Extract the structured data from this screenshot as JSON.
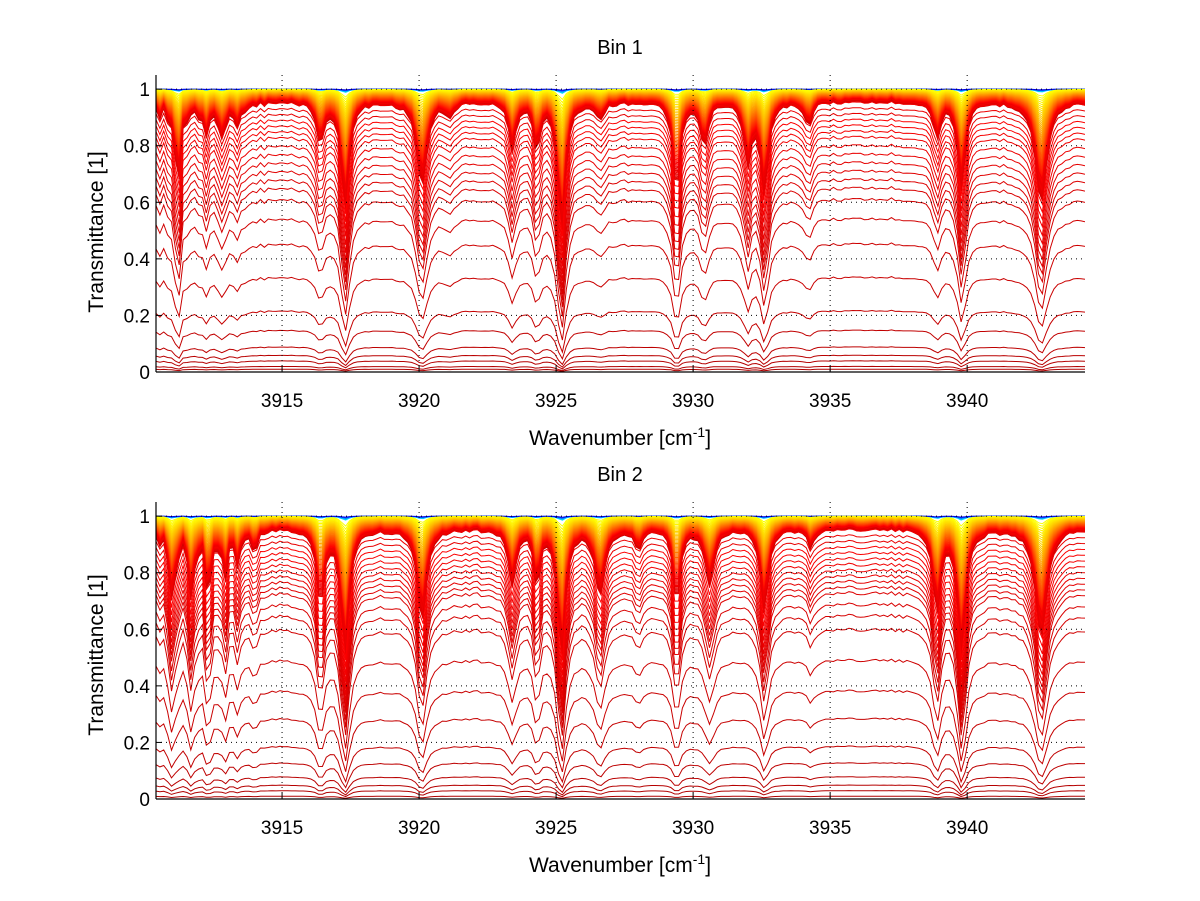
{
  "chart_data": [
    {
      "type": "line",
      "title": "Bin 1",
      "xlabel": "Wavenumber [cm",
      "xlabel_sup": "-1",
      "xlabel_end": "]",
      "ylabel": "Transmittance [1]",
      "xlim": [
        3910.4,
        3944.3
      ],
      "ylim": [
        0,
        1.05
      ],
      "xticks": [
        3915,
        3920,
        3925,
        3930,
        3935,
        3940
      ],
      "xtick_labels": [
        "3915",
        "3920",
        "3925",
        "3930",
        "3935",
        "3940"
      ],
      "yticks": [
        0,
        0.2,
        0.4,
        0.6,
        0.8,
        1
      ],
      "ytick_labels": [
        "0",
        "0.2",
        "0.4",
        "0.6",
        "0.8",
        "1"
      ],
      "grid": true,
      "colormap": "jet",
      "num_spectra": 60,
      "continuum_levels": [
        1.0,
        0.98,
        0.96,
        0.94,
        0.92,
        0.9,
        0.88,
        0.86,
        0.84,
        0.81,
        0.78,
        0.75,
        0.72,
        0.69,
        0.66,
        0.62,
        0.55,
        0.46,
        0.34,
        0.22,
        0.15,
        0.09,
        0.06,
        0.04,
        0.02,
        0.01,
        0.0
      ],
      "absorption_lines": [
        {
          "x": 3911.2,
          "depth": 0.35,
          "width": 0.12
        },
        {
          "x": 3912.2,
          "depth": 0.12,
          "width": 0.12
        },
        {
          "x": 3912.8,
          "depth": 0.15,
          "width": 0.12
        },
        {
          "x": 3913.4,
          "depth": 0.08,
          "width": 0.15
        },
        {
          "x": 3916.4,
          "depth": 0.18,
          "width": 0.15
        },
        {
          "x": 3917.3,
          "depth": 0.55,
          "width": 0.15
        },
        {
          "x": 3920.1,
          "depth": 0.4,
          "width": 0.2
        },
        {
          "x": 3921.1,
          "depth": 0.06,
          "width": 0.15
        },
        {
          "x": 3923.4,
          "depth": 0.2,
          "width": 0.15
        },
        {
          "x": 3924.3,
          "depth": 0.22,
          "width": 0.12
        },
        {
          "x": 3925.2,
          "depth": 0.75,
          "width": 0.14
        },
        {
          "x": 3926.6,
          "depth": 0.06,
          "width": 0.2
        },
        {
          "x": 3929.4,
          "depth": 0.45,
          "width": 0.14
        },
        {
          "x": 3930.4,
          "depth": 0.2,
          "width": 0.15
        },
        {
          "x": 3932.0,
          "depth": 0.28,
          "width": 0.15
        },
        {
          "x": 3932.6,
          "depth": 0.45,
          "width": 0.15
        },
        {
          "x": 3934.2,
          "depth": 0.1,
          "width": 0.15
        },
        {
          "x": 3938.9,
          "depth": 0.15,
          "width": 0.15
        },
        {
          "x": 3939.8,
          "depth": 0.42,
          "width": 0.15
        },
        {
          "x": 3942.7,
          "depth": 0.5,
          "width": 0.22
        }
      ]
    },
    {
      "type": "line",
      "title": "Bin 2",
      "xlabel": "Wavenumber [cm",
      "xlabel_sup": "-1",
      "xlabel_end": "]",
      "ylabel": "Transmittance [1]",
      "xlim": [
        3910.4,
        3944.3
      ],
      "ylim": [
        0,
        1.05
      ],
      "xticks": [
        3915,
        3920,
        3925,
        3930,
        3935,
        3940
      ],
      "xtick_labels": [
        "3915",
        "3920",
        "3925",
        "3930",
        "3935",
        "3940"
      ],
      "yticks": [
        0,
        0.2,
        0.4,
        0.6,
        0.8,
        1
      ],
      "ytick_labels": [
        "0",
        "0.2",
        "0.4",
        "0.6",
        "0.8",
        "1"
      ],
      "grid": true,
      "colormap": "jet",
      "num_spectra": 60,
      "continuum_levels": [
        1.0,
        0.98,
        0.96,
        0.94,
        0.92,
        0.9,
        0.88,
        0.86,
        0.84,
        0.82,
        0.8,
        0.78,
        0.76,
        0.74,
        0.7,
        0.66,
        0.61,
        0.5,
        0.39,
        0.29,
        0.19,
        0.13,
        0.08,
        0.05,
        0.03,
        0.01,
        0.0
      ],
      "absorption_lines": [
        {
          "x": 3911.0,
          "depth": 0.3,
          "width": 0.12
        },
        {
          "x": 3911.7,
          "depth": 0.3,
          "width": 0.1
        },
        {
          "x": 3912.3,
          "depth": 0.3,
          "width": 0.1
        },
        {
          "x": 3912.9,
          "depth": 0.2,
          "width": 0.1
        },
        {
          "x": 3913.4,
          "depth": 0.15,
          "width": 0.1
        },
        {
          "x": 3914.0,
          "depth": 0.08,
          "width": 0.12
        },
        {
          "x": 3916.4,
          "depth": 0.35,
          "width": 0.15
        },
        {
          "x": 3917.3,
          "depth": 0.7,
          "width": 0.15
        },
        {
          "x": 3920.1,
          "depth": 0.45,
          "width": 0.18
        },
        {
          "x": 3923.4,
          "depth": 0.25,
          "width": 0.15
        },
        {
          "x": 3924.3,
          "depth": 0.25,
          "width": 0.12
        },
        {
          "x": 3925.2,
          "depth": 0.72,
          "width": 0.14
        },
        {
          "x": 3926.6,
          "depth": 0.3,
          "width": 0.2
        },
        {
          "x": 3928.0,
          "depth": 0.08,
          "width": 0.15
        },
        {
          "x": 3929.4,
          "depth": 0.35,
          "width": 0.14
        },
        {
          "x": 3930.6,
          "depth": 0.25,
          "width": 0.18
        },
        {
          "x": 3932.6,
          "depth": 0.4,
          "width": 0.15
        },
        {
          "x": 3934.3,
          "depth": 0.08,
          "width": 0.15
        },
        {
          "x": 3938.9,
          "depth": 0.4,
          "width": 0.15
        },
        {
          "x": 3939.8,
          "depth": 0.7,
          "width": 0.15
        },
        {
          "x": 3942.7,
          "depth": 0.55,
          "width": 0.22
        }
      ]
    }
  ]
}
